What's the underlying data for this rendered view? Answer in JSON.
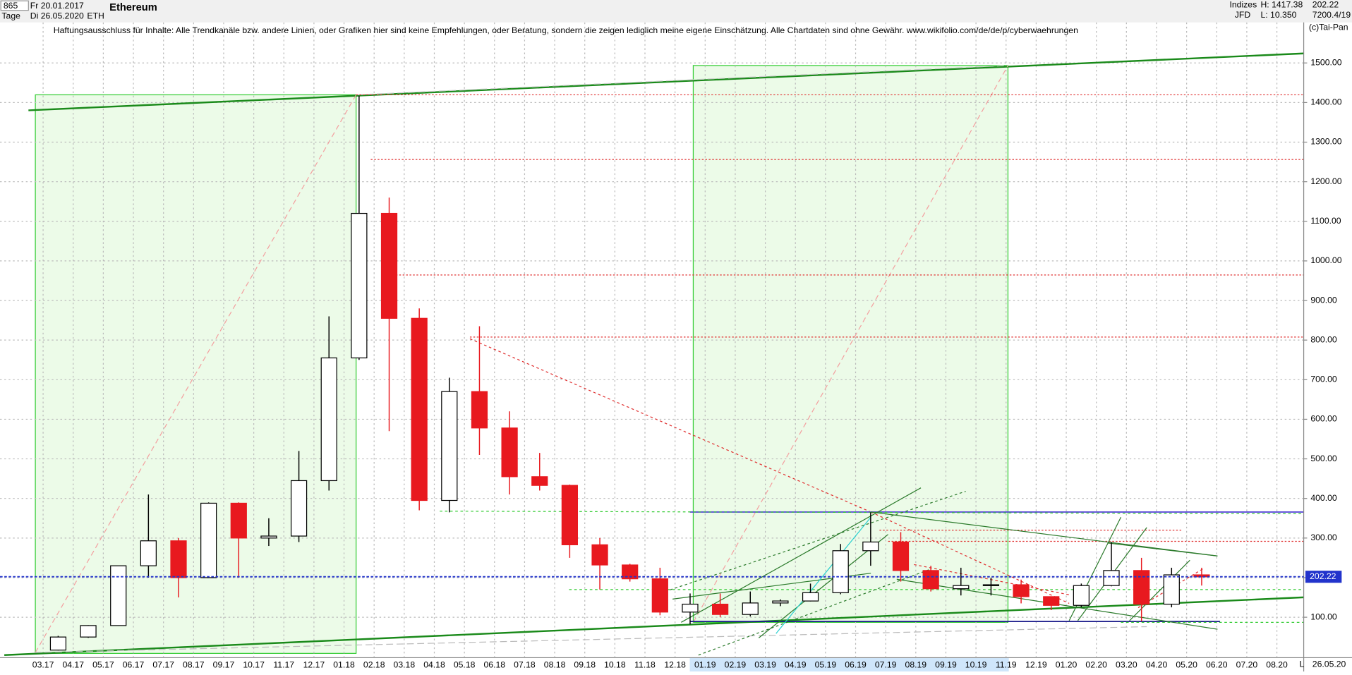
{
  "header": {
    "count": "865",
    "period": "Tage",
    "date_from": "Fr 20.01.2017",
    "date_to": "Di 26.05.2020",
    "title": "Ethereum",
    "symbol": "ETH",
    "group": "Indizes",
    "broker": "JFD",
    "high": "H: 1417.38",
    "low": "L: 10.350",
    "last": "202.22",
    "info": "7200.4/19",
    "copyright": "(c)Tai-Pan",
    "disclaimer": "Haftungsausschluss für Inhalte: Alle Trendkanäle bzw. andere Linien, oder Grafiken hier sind keine Empfehlungen, oder Beratung, sondern die zeigen lediglich meine eigene Einschätzung. Alle Chartdaten sind ohne Gewähr.  www.wikifolio.com/de/de/p/cyberwaehrungen",
    "scale_mode": "L",
    "end_date": "26.05.20"
  },
  "chart_data": {
    "type": "candlestick",
    "categories": [
      "03.17",
      "04.17",
      "05.17",
      "06.17",
      "07.17",
      "08.17",
      "09.17",
      "10.17",
      "11.17",
      "12.17",
      "01.18",
      "02.18",
      "03.18",
      "04.18",
      "05.18",
      "06.18",
      "07.18",
      "08.18",
      "09.18",
      "10.18",
      "11.18",
      "12.18",
      "01.19",
      "02.19",
      "03.19",
      "04.19",
      "05.19",
      "06.19",
      "07.19",
      "08.19",
      "09.19",
      "10.19",
      "11.19",
      "12.19",
      "01.20",
      "02.20",
      "03.20",
      "04.20",
      "05.20",
      "06.20",
      "07.20",
      "08.20"
    ],
    "open": [
      17,
      50,
      79,
      230,
      293,
      200,
      388,
      300,
      305,
      445,
      755,
      1120,
      855,
      395,
      670,
      578,
      455,
      433,
      283,
      232,
      197,
      113,
      133,
      107,
      136,
      141,
      162,
      268,
      290,
      218,
      172,
      180,
      182,
      152,
      130,
      180,
      218,
      133,
      207,
      null,
      null,
      null
    ],
    "high": [
      53,
      80,
      230,
      410,
      300,
      390,
      390,
      350,
      520,
      860,
      1417,
      1160,
      880,
      705,
      835,
      620,
      515,
      435,
      300,
      235,
      225,
      160,
      160,
      165,
      145,
      185,
      285,
      365,
      315,
      230,
      225,
      200,
      195,
      152,
      185,
      290,
      250,
      225,
      225,
      null,
      null,
      null
    ],
    "low": [
      16,
      48,
      78,
      200,
      150,
      200,
      200,
      280,
      290,
      420,
      750,
      570,
      370,
      365,
      510,
      410,
      420,
      250,
      170,
      190,
      105,
      82,
      100,
      102,
      128,
      140,
      158,
      230,
      190,
      165,
      155,
      155,
      135,
      118,
      125,
      178,
      90,
      125,
      180,
      null,
      null,
      null
    ],
    "close": [
      50,
      79,
      230,
      293,
      200,
      388,
      300,
      305,
      445,
      755,
      1120,
      855,
      395,
      670,
      578,
      455,
      433,
      283,
      232,
      197,
      113,
      133,
      107,
      136,
      141,
      162,
      268,
      290,
      218,
      172,
      180,
      182,
      152,
      130,
      180,
      218,
      133,
      207,
      202,
      null,
      null,
      null
    ],
    "up_color": "#000000",
    "down_color": "#e8191f",
    "last_price": 202.22,
    "ylim": [
      0,
      1659
    ],
    "yticks": [
      {
        "value": 100,
        "label": "100.00"
      },
      {
        "value": 200,
        "label": "200.00"
      },
      {
        "value": 300,
        "label": "300.00"
      },
      {
        "value": 400,
        "label": "400.00"
      },
      {
        "value": 500,
        "label": "500.00"
      },
      {
        "value": 600,
        "label": "600.00"
      },
      {
        "value": 700,
        "label": "700.00"
      },
      {
        "value": 800,
        "label": "800.00"
      },
      {
        "value": 900,
        "label": "900.00"
      },
      {
        "value": 1000,
        "label": "1000.00"
      },
      {
        "value": 1100,
        "label": "1100.00"
      },
      {
        "value": 1200,
        "label": "1200.00"
      },
      {
        "value": 1300,
        "label": "1300.00"
      },
      {
        "value": 1400,
        "label": "1400.00"
      },
      {
        "value": 1500,
        "label": "1500.00"
      }
    ],
    "grid": true
  }
}
